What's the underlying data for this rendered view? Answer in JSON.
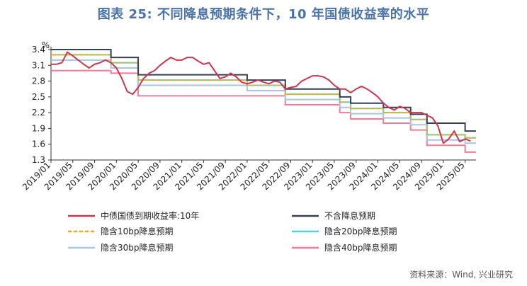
{
  "title": "图表 25: 不同降息预期条件下，10 年国债收益率的水平",
  "source": "资料来源：Wind, 兴业研究",
  "chart_data": {
    "type": "line",
    "y_unit_label": "%",
    "ylim": [
      1.3,
      3.4
    ],
    "yticks": [
      "3.4",
      "3.1",
      "2.8",
      "2.5",
      "2.2",
      "1.9",
      "1.6",
      "1.3"
    ],
    "xlim": [
      "2019-01",
      "2025-07"
    ],
    "xticks": [
      "2019/01",
      "2019/05",
      "2019/09",
      "2020/01",
      "2020/05",
      "2020/09",
      "2021/01",
      "2021/05",
      "2021/09",
      "2022/01",
      "2022/05",
      "2022/09",
      "2023/01",
      "2023/05",
      "2023/09",
      "2024/01",
      "2024/05",
      "2024/09",
      "2025/01",
      "2025/05"
    ],
    "grid": false,
    "legend_position": "bottom",
    "series": [
      {
        "name": "中债国债到期收益率:10年",
        "color": "#c8374a",
        "x": [
          "2019-01",
          "2019-02",
          "2019-03",
          "2019-04",
          "2019-05",
          "2019-06",
          "2019-07",
          "2019-08",
          "2019-09",
          "2019-10",
          "2019-11",
          "2019-12",
          "2020-01",
          "2020-02",
          "2020-03",
          "2020-04",
          "2020-05",
          "2020-06",
          "2020-07",
          "2020-08",
          "2020-09",
          "2020-10",
          "2020-11",
          "2020-12",
          "2021-01",
          "2021-02",
          "2021-03",
          "2021-04",
          "2021-05",
          "2021-06",
          "2021-07",
          "2021-08",
          "2021-09",
          "2021-10",
          "2021-11",
          "2021-12",
          "2022-01",
          "2022-02",
          "2022-03",
          "2022-04",
          "2022-05",
          "2022-06",
          "2022-07",
          "2022-08",
          "2022-09",
          "2022-10",
          "2022-11",
          "2022-12",
          "2023-01",
          "2023-02",
          "2023-03",
          "2023-04",
          "2023-05",
          "2023-06",
          "2023-07",
          "2023-08",
          "2023-09",
          "2023-10",
          "2023-11",
          "2023-12",
          "2024-01",
          "2024-02",
          "2024-03",
          "2024-04",
          "2024-05",
          "2024-06",
          "2024-07",
          "2024-08",
          "2024-09",
          "2024-10",
          "2024-11",
          "2024-12",
          "2025-01",
          "2025-02",
          "2025-03",
          "2025-04",
          "2025-05",
          "2025-06"
        ],
        "values": [
          3.12,
          3.12,
          3.15,
          3.35,
          3.28,
          3.2,
          3.12,
          3.05,
          3.12,
          3.15,
          3.2,
          3.15,
          3.05,
          2.85,
          2.6,
          2.55,
          2.68,
          2.85,
          2.95,
          3.0,
          3.1,
          3.18,
          3.25,
          3.2,
          3.2,
          3.25,
          3.25,
          3.18,
          3.12,
          3.15,
          3.0,
          2.85,
          2.88,
          2.95,
          2.88,
          2.78,
          2.75,
          2.78,
          2.82,
          2.78,
          2.75,
          2.8,
          2.78,
          2.65,
          2.68,
          2.7,
          2.8,
          2.85,
          2.9,
          2.9,
          2.88,
          2.82,
          2.72,
          2.65,
          2.65,
          2.58,
          2.65,
          2.7,
          2.65,
          2.58,
          2.5,
          2.38,
          2.3,
          2.25,
          2.32,
          2.28,
          2.2,
          2.2,
          2.2,
          2.15,
          2.1,
          1.95,
          1.62,
          1.7,
          1.85,
          1.65,
          1.7,
          1.66
        ]
      },
      {
        "name": "不含降息预期",
        "color": "#34405a",
        "steps": [
          [
            "2019-01",
            3.4
          ],
          [
            "2019-12",
            3.25
          ],
          [
            "2020-05",
            2.92
          ],
          [
            "2022-01",
            2.82
          ],
          [
            "2022-08",
            2.65
          ],
          [
            "2023-06",
            2.5
          ],
          [
            "2023-08",
            2.38
          ],
          [
            "2024-02",
            2.3
          ],
          [
            "2024-07",
            2.17
          ],
          [
            "2024-10",
            2.0
          ],
          [
            "2025-05",
            1.85
          ],
          [
            "2025-07",
            1.85
          ]
        ]
      },
      {
        "name": "隐含10bp降息预期",
        "color": "#f5a623",
        "dashed": true,
        "steps": [
          [
            "2019-01",
            3.3
          ],
          [
            "2019-12",
            3.15
          ],
          [
            "2020-05",
            2.82
          ],
          [
            "2022-01",
            2.72
          ],
          [
            "2022-08",
            2.55
          ],
          [
            "2023-06",
            2.4
          ],
          [
            "2023-08",
            2.28
          ],
          [
            "2024-02",
            2.2
          ],
          [
            "2024-07",
            2.07
          ],
          [
            "2024-10",
            1.78
          ],
          [
            "2025-05",
            1.72
          ],
          [
            "2025-07",
            1.72
          ]
        ]
      },
      {
        "name": "隐含20bp降息预期",
        "color": "#4fd4d4",
        "steps": [
          [
            "2019-01",
            3.3
          ],
          [
            "2019-12",
            3.15
          ],
          [
            "2020-05",
            2.82
          ],
          [
            "2022-01",
            2.72
          ],
          [
            "2022-08",
            2.55
          ],
          [
            "2023-06",
            2.4
          ],
          [
            "2023-08",
            2.28
          ],
          [
            "2024-02",
            2.2
          ],
          [
            "2024-07",
            2.07
          ],
          [
            "2024-10",
            1.78
          ],
          [
            "2025-05",
            1.72
          ],
          [
            "2025-07",
            1.72
          ]
        ]
      },
      {
        "name": "隐含30bp降息预期",
        "color": "#a9c4e4",
        "steps": [
          [
            "2019-01",
            3.2
          ],
          [
            "2019-12",
            3.05
          ],
          [
            "2020-05",
            2.72
          ],
          [
            "2022-01",
            2.62
          ],
          [
            "2022-08",
            2.45
          ],
          [
            "2023-06",
            2.3
          ],
          [
            "2023-08",
            2.18
          ],
          [
            "2024-02",
            2.1
          ],
          [
            "2024-07",
            1.97
          ],
          [
            "2024-10",
            1.68
          ],
          [
            "2025-05",
            1.62
          ],
          [
            "2025-07",
            1.62
          ]
        ]
      },
      {
        "name": "隐含40bp降息预期",
        "color": "#f07b95",
        "steps": [
          [
            "2019-01",
            3.0
          ],
          [
            "2019-12",
            2.95
          ],
          [
            "2020-05",
            2.52
          ],
          [
            "2022-01",
            2.52
          ],
          [
            "2022-08",
            2.35
          ],
          [
            "2023-06",
            2.2
          ],
          [
            "2023-08",
            2.08
          ],
          [
            "2024-02",
            2.0
          ],
          [
            "2024-07",
            1.87
          ],
          [
            "2024-10",
            1.58
          ],
          [
            "2025-05",
            1.45
          ],
          [
            "2025-07",
            1.45
          ]
        ]
      }
    ]
  }
}
